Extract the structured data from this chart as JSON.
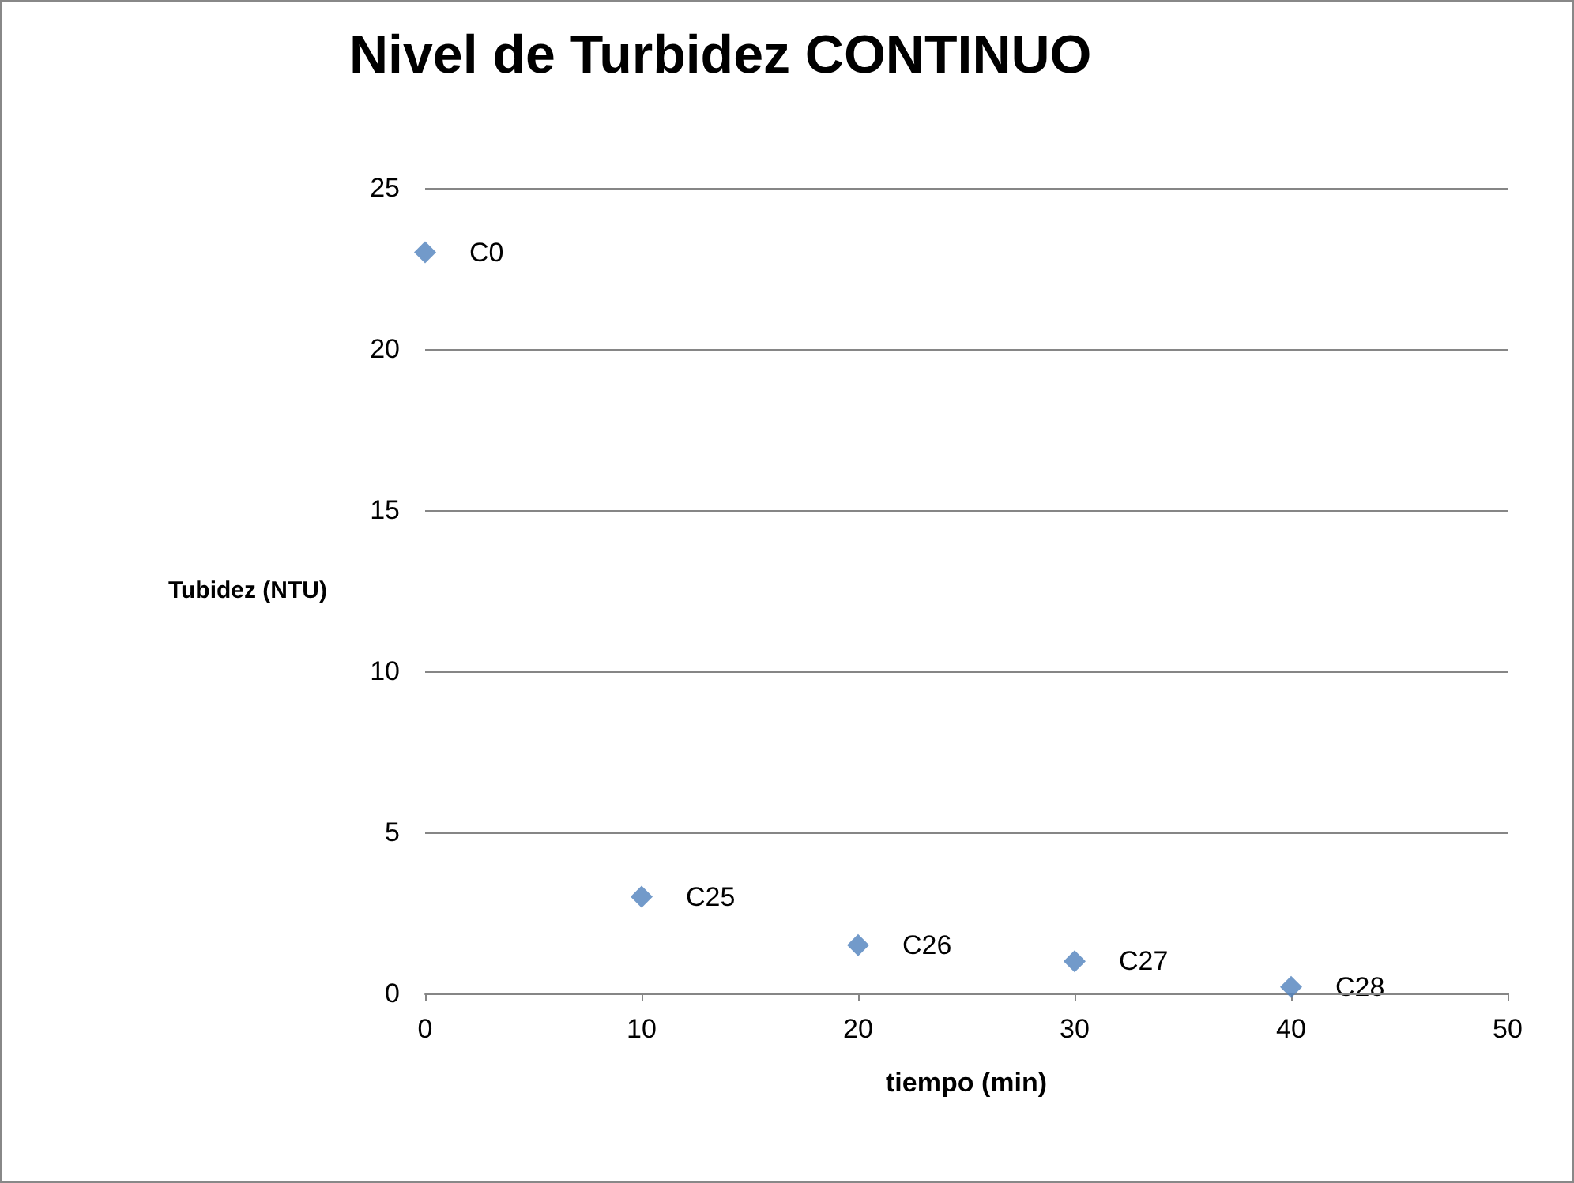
{
  "chart_data": {
    "type": "scatter",
    "title": "Nivel de Turbidez CONTINUO",
    "xlabel": "tiempo (min)",
    "ylabel": "Tubidez (NTU)",
    "x": [
      0,
      10,
      20,
      30,
      40
    ],
    "series": [
      {
        "color": "#4f81bd",
        "values": [
          23,
          3,
          1.5,
          1,
          0.2
        ]
      }
    ],
    "xlim": [
      0,
      50
    ],
    "xticks": [
      0,
      10,
      20,
      30,
      40,
      50
    ],
    "ylim": [
      0,
      25
    ],
    "yticks": [
      0,
      5,
      10,
      15,
      20,
      25
    ],
    "grid": "y",
    "marker": "diamond",
    "annotations": [
      {
        "text": "C0",
        "x": 0,
        "y": 23
      },
      {
        "text": "C25",
        "x": 10,
        "y": 3
      },
      {
        "text": "C26",
        "x": 20,
        "y": 1.5
      },
      {
        "text": "C27",
        "x": 30,
        "y": 1
      },
      {
        "text": "C28",
        "x": 40,
        "y": 0.2
      }
    ]
  }
}
